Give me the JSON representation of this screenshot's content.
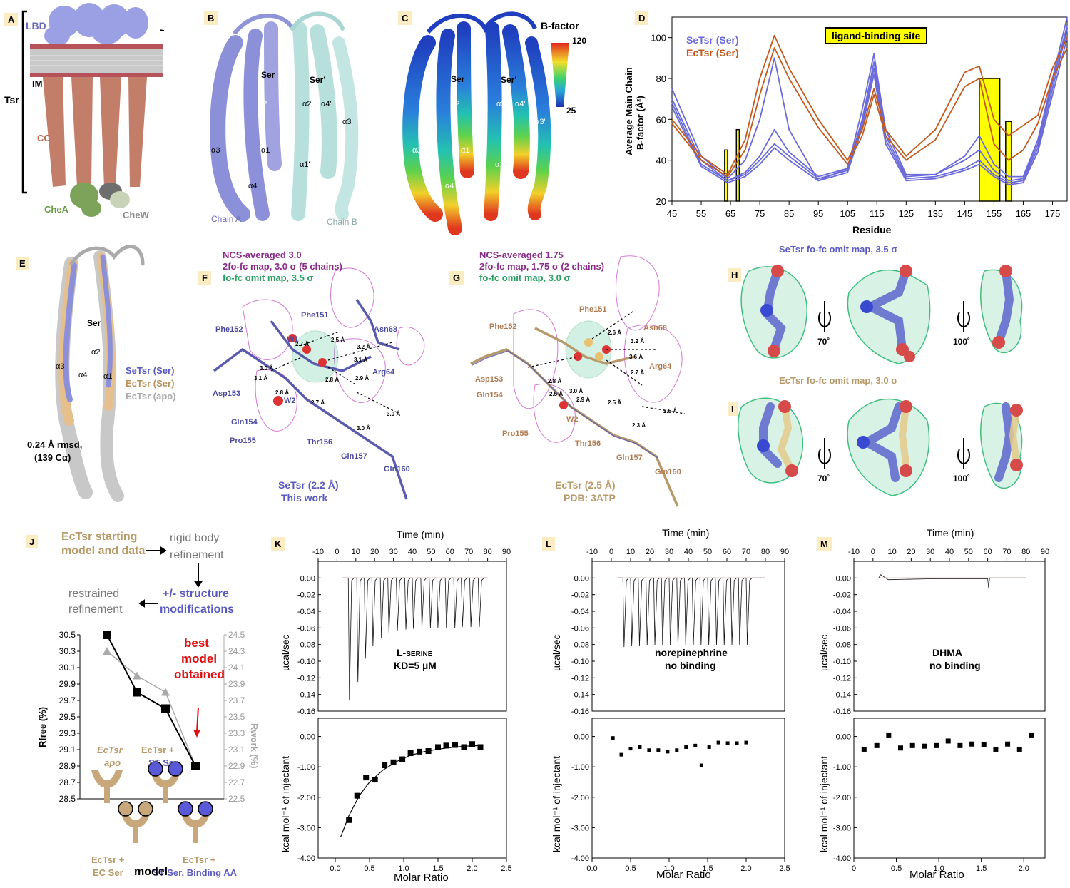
{
  "panels": {
    "A": {
      "label": "A",
      "lbd": "LBD",
      "im": "IM",
      "tsr": "Tsr",
      "cc": "CC",
      "chea": "CheA",
      "chew": "CheW"
    },
    "B": {
      "label": "B",
      "ser": "Ser",
      "serp": "Ser'",
      "a1": "α1",
      "a2": "α2",
      "a3": "α3",
      "a4": "α4",
      "a1p": "α1'",
      "a2p": "α2'",
      "a3p": "α3'",
      "a4p": "α4'",
      "chainA": "Chain A",
      "chainB": "Chain B"
    },
    "C": {
      "label": "C",
      "ser": "Ser",
      "serp": "Ser'",
      "a1": "α1",
      "a2": "α2",
      "a3": "α3",
      "a4": "α4",
      "a1p": "α1'",
      "a2p": "α2'",
      "a3p": "α3'",
      "a4p": "α4'",
      "bfactor": "B-factor",
      "bmax": "120",
      "bmin": "25"
    },
    "D": {
      "label": "D",
      "ylabel1": "Average Main Chain",
      "ylabel2": "B-factor (Å²)",
      "xlabel": "Residue",
      "legend_se": "SeTsr (Ser)",
      "legend_ec": "EcTsr (Ser)",
      "site": "ligand-binding site"
    },
    "E": {
      "label": "E",
      "ser": "Ser",
      "a1": "α1",
      "a2": "α2",
      "a3": "α3",
      "a4": "α4",
      "leg1": "SeTsr (Ser)",
      "leg2": "EcTsr (Ser)",
      "leg3": "EcTsr (apo)",
      "rmsd1": "0.24 Å rmsd,",
      "rmsd2": "(139 Cα)"
    },
    "F": {
      "label": "F",
      "h1": "NCS-averaged 3.0",
      "h2": "2fo-fc map, 3.0 σ (5 chains)",
      "h3": "fo-fc omit map, 3.5 σ",
      "res": [
        "Phe151",
        "Phe152",
        "Asn68",
        "Arg64",
        "Asp153",
        "Gln154",
        "Pro155",
        "Thr156",
        "Gln157",
        "Gln160",
        "W1",
        "W2"
      ],
      "dists": [
        "2.7 Å",
        "2.5 Å",
        "3.2 Å",
        "3.1 Å",
        "3.0 Å",
        "3.1 Å",
        "2.9 Å",
        "2.8 Å",
        "2.8 Å",
        "2.7 Å",
        "3.0 Å",
        "3.0 Å"
      ],
      "cap1": "SeTsr (2.2 Å)",
      "cap2": "This work"
    },
    "G": {
      "label": "G",
      "h1": "NCS-averaged 1.75",
      "h2": "2fo-fc map, 1.75 σ (2 chains)",
      "h3": "fo-fc omit map, 3.0 σ",
      "res": [
        "Phe151",
        "Phe152",
        "Asn68",
        "Arg64",
        "Asp153",
        "Gln154",
        "Pro155",
        "Thr156",
        "Gln157",
        "Gln160",
        "W2"
      ],
      "dists": [
        "2.6 Å",
        "3.2 Å",
        "3.6 Å",
        "2.7 Å",
        "2.8 Å",
        "2.5 Å",
        "3.0 Å",
        "2.9 Å",
        "2.5 Å",
        "2.3 Å",
        "2.5 Å"
      ],
      "cap1": "EcTsr (2.5 Å)",
      "cap2": "PDB: 3ATP"
    },
    "H": {
      "label": "H",
      "title": "SeTsr fo-fc omit map, 3.5 σ",
      "rot1": "70˚",
      "rot2": "100˚"
    },
    "I": {
      "label": "I",
      "title": "EcTsr fo-fc omit map, 3.0 σ",
      "rot1": "70˚",
      "rot2": "100˚"
    },
    "J": {
      "label": "J",
      "f1": "EcTsr starting",
      "f1b": "model and data",
      "f2": "rigid body",
      "f2b": "refinement",
      "f3": "+/- structure",
      "f3b": "modifications",
      "f4": "restrained",
      "f4b": "refinement",
      "best1": "best",
      "best2": "model",
      "best3": "obtained",
      "yl": "Rfree (%)",
      "yr": "Rwork (%)",
      "xlabel": "model",
      "m1": "EcTsr",
      "m1b": "apo",
      "m2": "EcTsr +",
      "m2b": "EC Ser",
      "m3": "EcTsr +",
      "m3b": "ST Ser",
      "m4": "EcTsr +",
      "m4b": "ST Ser, Binding AA"
    },
    "K": {
      "label": "K",
      "time": "Time (min)",
      "ucal": "µcal/sec",
      "kcal": "kcal mol⁻¹ of injectant",
      "molar": "Molar Ratio",
      "note1": "L-serine",
      "note2": "KD=5 µM"
    },
    "L": {
      "label": "L",
      "time": "Time (min)",
      "ucal": "µcal/sec",
      "kcal": "kcal mol⁻¹ of injectant",
      "molar": "Molar Ratio",
      "note1": "norepinephrine",
      "note2": "no binding"
    },
    "M": {
      "label": "M",
      "time": "Time (min)",
      "ucal": "µcal/sec",
      "kcal": "kcal mol⁻¹ of injectant",
      "molar": "Molar Ratio",
      "note1": "DHMA",
      "note2": "no binding"
    }
  },
  "chart_data": [
    {
      "type": "line",
      "panel": "D",
      "ylabel": "Average Main Chain B-factor (Å²)",
      "xlabel": "Residue",
      "xlim": [
        45,
        180
      ],
      "ylim": [
        20,
        110
      ],
      "xticks": [
        45,
        55,
        65,
        75,
        85,
        95,
        105,
        115,
        125,
        135,
        145,
        155,
        165,
        175
      ],
      "yticks": [
        20,
        40,
        60,
        80,
        100
      ],
      "highlight_bars": [
        {
          "x": [
            63,
            64
          ],
          "top": 45
        },
        {
          "x": [
            67,
            68
          ],
          "top": 55
        },
        {
          "x": [
            150,
            157
          ],
          "top": 80
        },
        {
          "x": [
            159,
            161
          ],
          "top": 59
        }
      ],
      "series": [
        {
          "name": "SeTsr (Ser)",
          "color": "#6a6adb",
          "x": [
            45,
            55,
            64,
            70,
            75,
            80,
            85,
            95,
            105,
            110,
            114,
            118,
            125,
            135,
            145,
            150,
            155,
            160,
            165,
            170,
            175,
            180
          ],
          "y": [
            75,
            42,
            31,
            40,
            60,
            90,
            55,
            30,
            36,
            65,
            92,
            55,
            33,
            33,
            42,
            52,
            38,
            32,
            32,
            50,
            80,
            110
          ]
        },
        {
          "name": "SeTsr (Ser)",
          "color": "#6a6adb",
          "x": [
            45,
            55,
            64,
            70,
            75,
            80,
            85,
            95,
            105,
            110,
            114,
            118,
            125,
            135,
            145,
            150,
            155,
            160,
            165,
            170,
            175,
            180
          ],
          "y": [
            70,
            40,
            30,
            34,
            42,
            55,
            44,
            32,
            36,
            60,
            88,
            52,
            32,
            33,
            40,
            45,
            35,
            30,
            31,
            48,
            78,
            106
          ]
        },
        {
          "name": "SeTsr (Ser)",
          "color": "#6a6adb",
          "x": [
            45,
            55,
            64,
            70,
            75,
            80,
            85,
            95,
            105,
            110,
            114,
            118,
            125,
            135,
            145,
            150,
            155,
            160,
            165,
            170,
            175,
            180
          ],
          "y": [
            68,
            38,
            30,
            33,
            40,
            48,
            42,
            31,
            35,
            58,
            85,
            50,
            31,
            32,
            36,
            40,
            33,
            29,
            30,
            46,
            75,
            104
          ]
        },
        {
          "name": "SeTsr (Ser)",
          "color": "#6a6adb",
          "x": [
            45,
            55,
            64,
            70,
            75,
            80,
            85,
            95,
            105,
            110,
            114,
            118,
            125,
            135,
            145,
            150,
            155,
            160,
            165,
            170,
            175,
            180
          ],
          "y": [
            66,
            37,
            29,
            32,
            38,
            46,
            40,
            30,
            34,
            56,
            82,
            48,
            30,
            31,
            35,
            38,
            32,
            28,
            29,
            44,
            72,
            100
          ]
        },
        {
          "name": "EcTsr (Ser)",
          "color": "#c25a1e",
          "x": [
            45,
            55,
            64,
            70,
            75,
            80,
            85,
            95,
            105,
            110,
            114,
            118,
            125,
            135,
            145,
            150,
            155,
            160,
            165,
            170,
            175,
            180
          ],
          "y": [
            60,
            42,
            33,
            50,
            80,
            101,
            85,
            60,
            40,
            55,
            75,
            55,
            42,
            55,
            83,
            86,
            60,
            52,
            57,
            62,
            85,
            100
          ]
        },
        {
          "name": "EcTsr (Ser)",
          "color": "#c25a1e",
          "x": [
            45,
            55,
            64,
            70,
            75,
            80,
            85,
            95,
            105,
            110,
            114,
            118,
            125,
            135,
            145,
            150,
            155,
            160,
            165,
            170,
            175,
            180
          ],
          "y": [
            58,
            40,
            32,
            45,
            72,
            95,
            80,
            56,
            38,
            52,
            72,
            52,
            40,
            50,
            76,
            80,
            48,
            40,
            45,
            58,
            80,
            95
          ]
        }
      ]
    },
    {
      "type": "line",
      "panel": "J",
      "xlabel": "model",
      "ylabel": "Rfree (%)",
      "ylabel_right": "Rwork (%)",
      "categories": [
        "EcTsr apo",
        "EcTsr + EC Ser",
        "EcTsr + ST Ser",
        "EcTsr + ST Ser, Binding AA"
      ],
      "ylim": [
        28.5,
        30.5
      ],
      "ylim_right": [
        22.5,
        24.5
      ],
      "yticks": [
        28.5,
        28.7,
        28.9,
        29.1,
        29.3,
        29.5,
        29.7,
        29.9,
        30.1,
        30.3,
        30.5
      ],
      "yticks_right": [
        22.5,
        22.7,
        22.9,
        23.1,
        23.3,
        23.5,
        23.7,
        23.9,
        24.1,
        24.3,
        24.5
      ],
      "series": [
        {
          "name": "Rfree (%)",
          "color": "#000000",
          "values": [
            30.5,
            29.8,
            29.6,
            28.9
          ]
        },
        {
          "name": "Rwork (%)",
          "color": "#aaaaaa",
          "values": [
            24.3,
            24.0,
            23.8,
            22.9
          ]
        }
      ]
    },
    {
      "type": "scatter",
      "panel": "K",
      "note": "L-serine KD=5 µM",
      "time_xlim": [
        -10,
        90
      ],
      "time_xticks": [
        -10,
        0,
        10,
        20,
        30,
        40,
        50,
        60,
        70,
        80,
        90
      ],
      "top_ylim": [
        -0.16,
        0.02
      ],
      "top_yticks": [
        "0.00",
        "-0.02",
        "-0.04",
        "-0.06",
        "-0.08",
        "-0.10",
        "-0.12",
        "-0.14",
        "-0.16"
      ],
      "peak_times": [
        6,
        10.5,
        14.5,
        18.5,
        23,
        27,
        31.5,
        36,
        40,
        44.5,
        49,
        53,
        57.5,
        62,
        66,
        70.5,
        75
      ],
      "peak_depths": [
        -0.147,
        -0.125,
        -0.097,
        -0.082,
        -0.072,
        -0.066,
        -0.063,
        -0.062,
        -0.061,
        -0.06,
        -0.06,
        -0.06,
        -0.06,
        -0.06,
        -0.059,
        -0.059,
        -0.059
      ],
      "xlabel": "Molar Ratio",
      "xlim": [
        -0.25,
        2.5
      ],
      "xticks": [
        "0.0",
        "0.5",
        "1.0",
        "1.5",
        "2.0",
        "2.5"
      ],
      "ylabel": "kcal mol⁻¹ of injectant",
      "ylim": [
        -4.0,
        0.6
      ],
      "yticks": [
        "0.00",
        "-1.00",
        "-2.00",
        "-3.00",
        "-4.00"
      ],
      "x": [
        0.2,
        0.32,
        0.45,
        0.58,
        0.72,
        0.85,
        0.98,
        1.1,
        1.23,
        1.36,
        1.5,
        1.62,
        1.75,
        1.88,
        2.0,
        2.12
      ],
      "y": [
        -2.75,
        -1.95,
        -1.35,
        -1.42,
        -0.95,
        -0.85,
        -0.75,
        -0.55,
        -0.5,
        -0.48,
        -0.35,
        -0.3,
        -0.28,
        -0.35,
        -0.25,
        -0.35
      ],
      "fit": {
        "x": [
          0.08,
          0.2,
          0.35,
          0.5,
          0.7,
          0.9,
          1.1,
          1.3,
          1.5,
          1.7,
          1.9,
          2.12
        ],
        "y": [
          -3.3,
          -2.6,
          -1.95,
          -1.5,
          -1.1,
          -0.82,
          -0.62,
          -0.5,
          -0.42,
          -0.36,
          -0.32,
          -0.3
        ]
      }
    },
    {
      "type": "scatter",
      "panel": "L",
      "note": "norepinephrine no binding",
      "time_xlim": [
        -10,
        90
      ],
      "time_xticks": [
        -10,
        0,
        10,
        20,
        30,
        40,
        50,
        60,
        70,
        80,
        90
      ],
      "top_ylim": [
        -0.16,
        0.02
      ],
      "top_yticks": [
        "0.00",
        "-0.02",
        "-0.04",
        "-0.06",
        "-0.08",
        "-0.10",
        "-0.12",
        "-0.14",
        "-0.16"
      ],
      "peak_times": [
        6,
        10,
        14,
        18,
        22,
        26,
        30,
        34,
        38,
        42,
        46,
        50,
        54,
        58,
        62,
        66,
        70
      ],
      "peak_depths": [
        -0.083,
        -0.082,
        -0.082,
        -0.081,
        -0.081,
        -0.081,
        -0.081,
        -0.081,
        -0.081,
        -0.081,
        -0.081,
        -0.081,
        -0.081,
        -0.081,
        -0.081,
        -0.081,
        -0.081
      ],
      "xlabel": "Molar Ratio",
      "xlim": [
        0,
        2.5
      ],
      "xticks": [
        "0.0",
        "0.5",
        "1.0",
        "1.5",
        "2.0",
        "2.5"
      ],
      "ylabel": "kcal mol⁻¹ of injectant",
      "ylim": [
        -4.0,
        0.6
      ],
      "yticks": [
        "0.00",
        "-1.00",
        "-2.00",
        "-3.00",
        "-4.00"
      ],
      "x": [
        0.27,
        0.38,
        0.5,
        0.62,
        0.74,
        0.86,
        0.98,
        1.1,
        1.22,
        1.34,
        1.42,
        1.52,
        1.64,
        1.76,
        1.88,
        2.0
      ],
      "y": [
        -0.05,
        -0.6,
        -0.4,
        -0.35,
        -0.45,
        -0.45,
        -0.5,
        -0.45,
        -0.35,
        -0.3,
        -0.95,
        -0.35,
        -0.2,
        -0.22,
        -0.22,
        -0.2
      ]
    },
    {
      "type": "scatter",
      "panel": "M",
      "note": "DHMA no binding",
      "time_xlim": [
        -10,
        90
      ],
      "time_xticks": [
        -10,
        0,
        10,
        20,
        30,
        40,
        50,
        60,
        70,
        80,
        90
      ],
      "top_ylim": [
        -0.16,
        0.02
      ],
      "top_yticks": [
        "0.00",
        "-0.02",
        "-0.04",
        "-0.06",
        "-0.08",
        "-0.10",
        "-0.12",
        "-0.14",
        "-0.16"
      ],
      "xlabel": "Molar Ratio",
      "xlim": [
        0,
        2.25
      ],
      "xticks": [
        "0",
        "0.5",
        "1.0",
        "1.5",
        "2.0"
      ],
      "ylabel": "kcal mol⁻¹ of injectant",
      "ylim": [
        -4.0,
        0.6
      ],
      "yticks": [
        "0.00",
        "-1.00",
        "-2.00",
        "-3.00",
        "-4.00"
      ],
      "x": [
        0.12,
        0.27,
        0.41,
        0.55,
        0.69,
        0.83,
        0.97,
        1.11,
        1.25,
        1.39,
        1.53,
        1.67,
        1.81,
        1.95,
        2.09
      ],
      "y": [
        -0.42,
        -0.3,
        0.05,
        -0.38,
        -0.3,
        -0.32,
        -0.3,
        -0.15,
        -0.3,
        -0.25,
        -0.28,
        -0.42,
        -0.25,
        -0.42,
        0.05
      ]
    }
  ]
}
